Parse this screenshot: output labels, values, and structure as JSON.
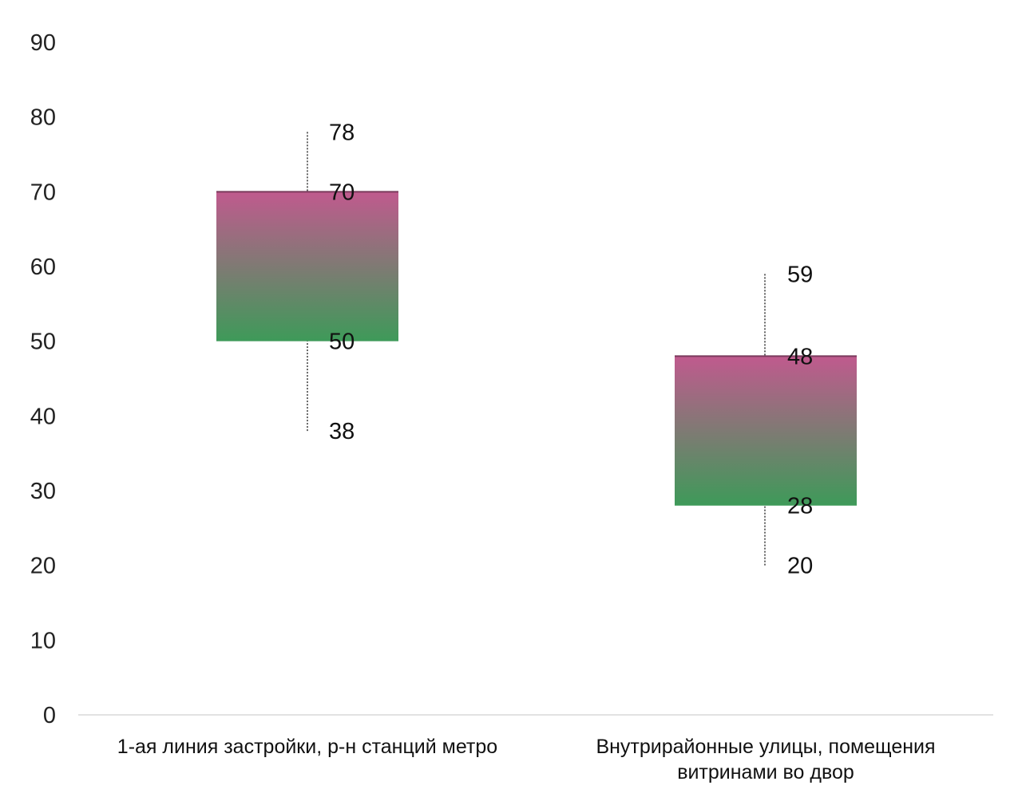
{
  "chart_data": {
    "type": "box",
    "title": "",
    "xlabel": "",
    "ylabel": "",
    "ylim": [
      0,
      90
    ],
    "yticks": [
      "0",
      "10",
      "20",
      "30",
      "40",
      "50",
      "60",
      "70",
      "80",
      "90"
    ],
    "grid": false,
    "legend": "none",
    "categories": [
      {
        "label_lines": [
          "1-ая линия застройки, р-н станций метро"
        ],
        "min": 38,
        "q1": 50,
        "q3": 70,
        "max": 78,
        "labels": {
          "min": "38",
          "q1": "50",
          "q3": "70",
          "max": "78"
        }
      },
      {
        "label_lines": [
          "Внутрирайонные улицы, помещения",
          "витринами во двор"
        ],
        "min": 20,
        "q1": 28,
        "q3": 48,
        "max": 59,
        "labels": {
          "min": "20",
          "q1": "28",
          "q3": "48",
          "max": "59"
        }
      }
    ],
    "colors": {
      "box_top": "#c05a8e",
      "box_bottom": "#3e9a59",
      "box_top_edge": "#7a3a5c",
      "whisker": "#333333",
      "baseline": "#d9d9d9",
      "text": "#222222"
    }
  }
}
